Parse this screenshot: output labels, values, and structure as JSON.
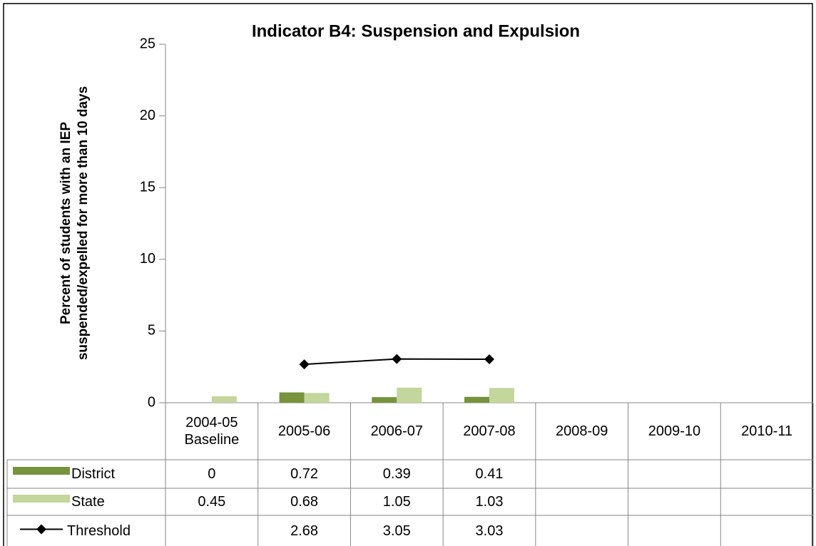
{
  "chart_data": {
    "type": "bar",
    "title": "Indicator B4: Suspension and Expulsion",
    "y_label": "Percent of students with an IEP suspended/expelled for more than 10 days",
    "categories": [
      "2004-05 Baseline",
      "2005-06",
      "2006-07",
      "2007-08",
      "2008-09",
      "2009-10",
      "2010-11"
    ],
    "series": [
      {
        "name": "District",
        "type": "bar",
        "color": "#77933c",
        "values": [
          0,
          0.72,
          0.39,
          0.41,
          null,
          null,
          null
        ]
      },
      {
        "name": "State",
        "type": "bar",
        "color": "#c3d69b",
        "values": [
          0.45,
          0.68,
          1.05,
          1.03,
          null,
          null,
          null
        ]
      },
      {
        "name": "Threshold",
        "type": "line",
        "color": "#000000",
        "values": [
          null,
          2.68,
          3.05,
          3.03,
          null,
          null,
          null
        ]
      }
    ],
    "ylim": [
      0,
      25
    ],
    "yticks": [
      0,
      5,
      10,
      15,
      20,
      25
    ],
    "grid": false,
    "data_table": true
  }
}
